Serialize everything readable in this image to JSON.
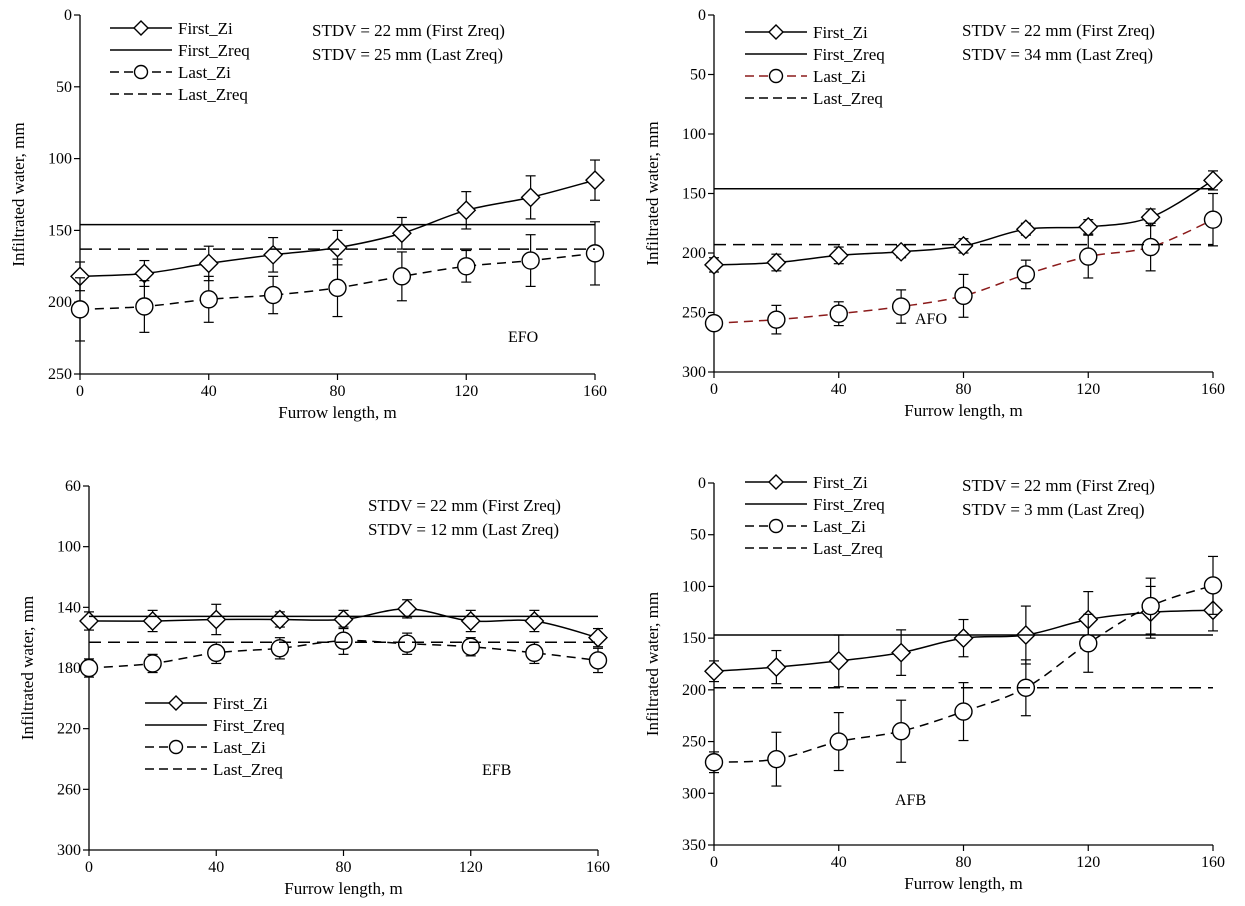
{
  "chart_data": [
    {
      "type": "line",
      "panel_label": "EFO",
      "xlabel": "Furrow length, m",
      "ylabel": "Infiltrated water, mm",
      "xlim": [
        0,
        160
      ],
      "ylim": [
        0,
        250
      ],
      "y_inverted": true,
      "x_ticks": [
        0,
        40,
        80,
        120,
        160
      ],
      "y_ticks": [
        0,
        50,
        100,
        150,
        200,
        250
      ],
      "annotations": [
        "STDV = 22 mm (First Zreq)",
        "STDV = 25 mm (Last Zreq)"
      ],
      "legend_placement": "top-left",
      "x": [
        0,
        20,
        40,
        60,
        80,
        100,
        120,
        140,
        160
      ],
      "series": [
        {
          "name": "First_Zi",
          "style": "solid-diamond",
          "color": "#000000",
          "values": [
            182,
            180,
            173,
            167,
            162,
            152,
            136,
            127,
            115
          ],
          "errors": [
            10,
            9,
            12,
            12,
            12,
            11,
            13,
            15,
            14
          ]
        },
        {
          "name": "First_Zreq",
          "style": "solid-line",
          "color": "#000000",
          "constant": 146
        },
        {
          "name": "Last_Zi",
          "style": "dashed-circle",
          "color": "#000000",
          "values": [
            205,
            203,
            198,
            195,
            190,
            182,
            175,
            171,
            166
          ],
          "errors": [
            22,
            18,
            16,
            13,
            20,
            17,
            11,
            18,
            22
          ]
        },
        {
          "name": "Last_Zreq",
          "style": "dashed-line",
          "color": "#000000",
          "constant": 163
        }
      ]
    },
    {
      "type": "line",
      "panel_label": "AFO",
      "xlabel": "Furrow length, m",
      "ylabel": "Infiltrated water, mm",
      "xlim": [
        0,
        160
      ],
      "ylim": [
        0,
        300
      ],
      "y_inverted": true,
      "x_ticks": [
        0,
        40,
        80,
        120,
        160
      ],
      "y_ticks": [
        0,
        50,
        100,
        150,
        200,
        250,
        300
      ],
      "annotations": [
        "STDV = 22 mm (First Zreq)",
        "STDV = 34 mm (Last Zreq)"
      ],
      "legend_placement": "top-left",
      "x": [
        0,
        20,
        40,
        60,
        80,
        100,
        120,
        140,
        160
      ],
      "series": [
        {
          "name": "First_Zi",
          "style": "solid-diamond",
          "color": "#000000",
          "values": [
            210,
            208,
            202,
            199,
            194,
            180,
            178,
            170,
            139
          ],
          "errors": [
            6,
            7,
            7,
            5,
            6,
            5,
            6,
            7,
            8
          ]
        },
        {
          "name": "First_Zreq",
          "style": "solid-line",
          "color": "#000000",
          "constant": 146
        },
        {
          "name": "Last_Zi",
          "style": "dashed-circle",
          "color": "#8b1a1a",
          "values": [
            259,
            256,
            251,
            245,
            236,
            218,
            203,
            195,
            172
          ],
          "errors": [
            6,
            12,
            10,
            14,
            18,
            12,
            18,
            20,
            22
          ]
        },
        {
          "name": "Last_Zreq",
          "style": "dashed-line",
          "color": "#000000",
          "constant": 193
        }
      ]
    },
    {
      "type": "line",
      "panel_label": "EFB",
      "xlabel": "Furrow length, m",
      "ylabel": "Infiltrated water, mm",
      "xlim": [
        0,
        160
      ],
      "ylim": [
        60,
        300
      ],
      "y_inverted": true,
      "x_ticks": [
        0,
        40,
        80,
        120,
        160
      ],
      "y_ticks": [
        60,
        100,
        140,
        180,
        220,
        260,
        300
      ],
      "annotations": [
        "STDV = 22 mm (First Zreq)",
        "STDV = 12 mm (Last Zreq)"
      ],
      "legend_placement": "bottom-left",
      "x": [
        0,
        20,
        40,
        60,
        80,
        100,
        120,
        140,
        160
      ],
      "series": [
        {
          "name": "First_Zi",
          "style": "solid-diamond",
          "color": "#000000",
          "values": [
            149,
            149,
            148,
            148,
            148,
            141,
            149,
            149,
            160
          ],
          "errors": [
            6,
            7,
            10,
            5,
            6,
            6,
            7,
            7,
            6
          ]
        },
        {
          "name": "First_Zreq",
          "style": "solid-line",
          "color": "#000000",
          "constant": 146
        },
        {
          "name": "Last_Zi",
          "style": "dashed-circle",
          "color": "#000000",
          "values": [
            180,
            177,
            170,
            167,
            162,
            164,
            166,
            170,
            175
          ],
          "errors": [
            6,
            6,
            7,
            7,
            9,
            7,
            6,
            7,
            8
          ]
        },
        {
          "name": "Last_Zreq",
          "style": "dashed-line",
          "color": "#000000",
          "constant": 163
        }
      ]
    },
    {
      "type": "line",
      "panel_label": "AFB",
      "xlabel": "Furrow length, m",
      "ylabel": "Infiltrated water, mm",
      "xlim": [
        0,
        160
      ],
      "ylim": [
        0,
        350
      ],
      "y_inverted": true,
      "x_ticks": [
        0,
        40,
        80,
        120,
        160
      ],
      "y_ticks": [
        0,
        50,
        100,
        150,
        200,
        250,
        300,
        350
      ],
      "annotations": [
        "STDV = 22 mm (First Zreq)",
        "STDV = 3 mm (Last Zreq)"
      ],
      "legend_placement": "top-left",
      "x": [
        0,
        20,
        40,
        60,
        80,
        100,
        120,
        140,
        160
      ],
      "series": [
        {
          "name": "First_Zi",
          "style": "solid-diamond",
          "color": "#000000",
          "values": [
            182,
            178,
            172,
            164,
            150,
            147,
            132,
            125,
            123
          ],
          "errors": [
            10,
            16,
            25,
            22,
            18,
            28,
            27,
            25,
            20
          ]
        },
        {
          "name": "First_Zreq",
          "style": "solid-line",
          "color": "#000000",
          "constant": 147
        },
        {
          "name": "Last_Zi",
          "style": "dashed-circle",
          "color": "#000000",
          "values": [
            270,
            267,
            250,
            240,
            221,
            198,
            155,
            119,
            99
          ],
          "errors": [
            10,
            26,
            28,
            30,
            28,
            27,
            28,
            27,
            28
          ]
        },
        {
          "name": "Last_Zreq",
          "style": "dashed-line",
          "color": "#000000",
          "constant": 198
        }
      ]
    }
  ]
}
